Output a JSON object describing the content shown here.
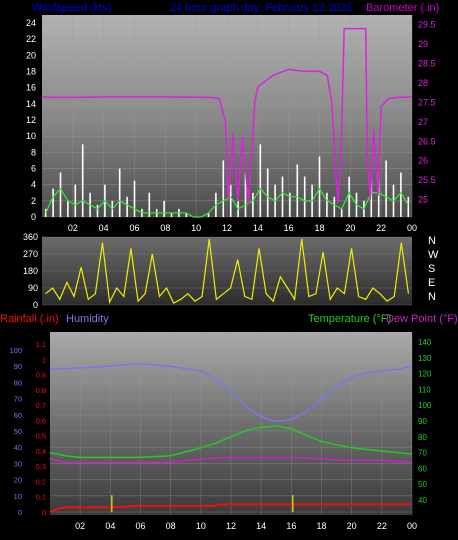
{
  "header": {
    "left": "Windspeed (kts)",
    "center": "24 hour graph day:  February 12 2025",
    "right": "Barometer (.in)"
  },
  "colors": {
    "wind_speed": "#ffffff",
    "wind_gust": "#e8e8e8",
    "wind_avg": "#33ee33",
    "barometer": "#dd22dd",
    "direction": "#eeee00",
    "rainfall": "#ee1111",
    "humidity": "#7777ee",
    "temperature": "#22cc22",
    "dewpoint": "#cc22cc",
    "label_left": "#0000dd",
    "label_right": "#cc00cc"
  },
  "chart_data": [
    {
      "name": "wind-barometer",
      "type": "line",
      "xticks": [
        "02",
        "04",
        "06",
        "08",
        "10",
        "12",
        "14",
        "16",
        "18",
        "20",
        "22",
        "00"
      ],
      "left_axis": {
        "label": "Windspeed (kts)",
        "ticks": [
          0,
          2,
          4,
          6,
          8,
          10,
          12,
          14,
          16,
          18,
          20,
          22,
          24
        ],
        "ylim": [
          0,
          25
        ]
      },
      "right_axis": {
        "label": "Barometer (.in)",
        "ticks": [
          "25",
          "25.5",
          "26",
          "26.5",
          "27",
          "27.5",
          "28",
          "28.5",
          "29",
          "29.5"
        ],
        "ylim": [
          24.55,
          29.75
        ]
      },
      "wind_speed": [
        1.0,
        3.5,
        5.5,
        2.0,
        4.0,
        9.0,
        3.0,
        1.5,
        4.0,
        2.0,
        6.0,
        2.5,
        4.5,
        1.0,
        3.0,
        1.0,
        2.0,
        0.5,
        1.0,
        0.5,
        0.0,
        0.0,
        0.5,
        3.0,
        7.0,
        4.0,
        2.0,
        5.5,
        3.0,
        9.0,
        6.0,
        4.0,
        5.0,
        3.0,
        6.5,
        5.0,
        4.0,
        7.5,
        3.0,
        2.5,
        1.0,
        5.0,
        3.0,
        2.0,
        4.5,
        5.5,
        7.0,
        4.0,
        5.5,
        2.5
      ],
      "wind_avg": [
        0.5,
        2.5,
        3.5,
        2.0,
        1.5,
        2.0,
        1.5,
        1.0,
        2.0,
        1.0,
        2.0,
        1.5,
        1.0,
        0.5,
        0.5,
        0.5,
        0.5,
        0.5,
        0.5,
        0.5,
        0.0,
        0.0,
        0.5,
        1.5,
        2.0,
        2.5,
        1.0,
        1.5,
        2.0,
        3.5,
        2.5,
        2.0,
        3.0,
        2.5,
        2.5,
        2.0,
        2.0,
        3.5,
        2.0,
        1.5,
        1.0,
        3.0,
        1.5,
        1.0,
        3.0,
        3.0,
        2.5,
        2.0,
        3.0,
        1.5
      ],
      "barometer": [
        [
          0.0,
          27.65
        ],
        [
          0.5,
          27.63
        ],
        [
          2.0,
          27.63
        ],
        [
          4.0,
          27.64
        ],
        [
          8.0,
          27.64
        ],
        [
          11.0,
          27.63
        ],
        [
          11.5,
          27.6
        ],
        [
          11.9,
          27.0
        ],
        [
          12.1,
          25.0
        ],
        [
          12.4,
          26.7
        ],
        [
          12.7,
          24.95
        ],
        [
          13.0,
          26.6
        ],
        [
          13.4,
          24.9
        ],
        [
          13.8,
          27.5
        ],
        [
          14.0,
          27.9
        ],
        [
          15.0,
          28.2
        ],
        [
          16.0,
          28.35
        ],
        [
          17.0,
          28.3
        ],
        [
          18.0,
          28.3
        ],
        [
          18.5,
          28.2
        ],
        [
          18.8,
          27.5
        ],
        [
          19.0,
          26.0
        ],
        [
          19.2,
          24.9
        ],
        [
          19.4,
          26.2
        ],
        [
          19.6,
          29.4
        ],
        [
          21.0,
          29.4
        ],
        [
          21.1,
          26.0
        ],
        [
          21.3,
          25.0
        ],
        [
          21.5,
          26.8
        ],
        [
          21.8,
          25.1
        ],
        [
          22.0,
          27.4
        ],
        [
          22.5,
          27.6
        ],
        [
          23.0,
          27.63
        ],
        [
          24.0,
          27.64
        ]
      ]
    },
    {
      "name": "wind-direction",
      "type": "scatter",
      "ylabels": [
        "360",
        "270",
        "180",
        "90",
        "0"
      ],
      "ylim": [
        0,
        360
      ],
      "compass": [
        "N",
        "W",
        "S",
        "E",
        "N"
      ],
      "values": [
        60,
        90,
        30,
        120,
        45,
        200,
        30,
        60,
        330,
        15,
        90,
        45,
        300,
        20,
        60,
        270,
        45,
        90,
        10,
        30,
        60,
        20,
        45,
        350,
        30,
        60,
        90,
        240,
        45,
        30,
        300,
        60,
        20,
        150,
        90,
        30,
        350,
        45,
        60,
        280,
        30,
        90,
        60,
        300,
        45,
        30,
        90,
        60,
        20,
        45,
        330,
        60
      ]
    },
    {
      "name": "rain-humidity-temperature",
      "type": "line",
      "xticks": [
        "02",
        "04",
        "06",
        "08",
        "10",
        "12",
        "14",
        "16",
        "18",
        "20",
        "22",
        "00"
      ],
      "labels": {
        "rainfall": "Rainfall (.in)",
        "humidity": "Humidity",
        "temperature": "Temperature (°F)",
        "dewpoint": "Dew Point (°F)"
      },
      "humidity_ticks": [
        "100",
        "90",
        "80",
        "70",
        "60",
        "50",
        "40",
        "30",
        "20",
        "10",
        "0"
      ],
      "rain_ticks": [
        "1.1",
        "1",
        "0.9",
        "0.8",
        "0.7",
        "0.6",
        "0.5",
        "0.4",
        "0.3",
        "0.2",
        "0.1",
        "0"
      ],
      "temp_ticks": [
        "140",
        "130",
        "120",
        "110",
        "100",
        "90",
        "80",
        "70",
        "60",
        "50",
        "40"
      ],
      "humidity": [
        [
          0,
          88
        ],
        [
          2,
          89
        ],
        [
          4,
          90
        ],
        [
          5,
          91
        ],
        [
          6,
          91.5
        ],
        [
          8,
          90
        ],
        [
          10,
          87
        ],
        [
          11,
          82
        ],
        [
          12,
          74
        ],
        [
          13,
          65
        ],
        [
          14,
          59
        ],
        [
          14.5,
          57
        ],
        [
          15,
          56
        ],
        [
          16,
          57
        ],
        [
          17,
          62
        ],
        [
          18,
          70
        ],
        [
          19,
          78
        ],
        [
          20,
          83
        ],
        [
          21,
          86
        ],
        [
          22,
          87
        ],
        [
          23,
          88
        ],
        [
          24,
          90
        ]
      ],
      "temperature": [
        [
          0,
          70
        ],
        [
          1,
          68
        ],
        [
          2,
          67
        ],
        [
          4,
          67
        ],
        [
          6,
          67
        ],
        [
          8,
          68
        ],
        [
          10,
          73
        ],
        [
          11,
          76
        ],
        [
          12,
          80
        ],
        [
          13,
          84
        ],
        [
          14,
          86
        ],
        [
          15,
          87
        ],
        [
          16,
          85
        ],
        [
          17,
          81
        ],
        [
          18,
          77
        ],
        [
          19,
          75
        ],
        [
          20,
          73
        ],
        [
          22,
          71
        ],
        [
          23,
          70
        ],
        [
          24,
          69
        ]
      ],
      "dewpoint": [
        [
          0,
          66
        ],
        [
          1,
          64
        ],
        [
          2,
          64
        ],
        [
          4,
          64
        ],
        [
          6,
          64
        ],
        [
          8,
          64
        ],
        [
          10,
          66
        ],
        [
          12,
          67
        ],
        [
          14,
          67
        ],
        [
          16,
          67
        ],
        [
          18,
          66
        ],
        [
          20,
          65
        ],
        [
          22,
          65
        ],
        [
          24,
          64
        ]
      ],
      "rainfall": [
        [
          0,
          0
        ],
        [
          0.5,
          0.02
        ],
        [
          1,
          0.03
        ],
        [
          2,
          0.03
        ],
        [
          4,
          0.03
        ],
        [
          6,
          0.04
        ],
        [
          8,
          0.04
        ],
        [
          10,
          0.04
        ],
        [
          11,
          0.04
        ],
        [
          11.2,
          0.05
        ],
        [
          14,
          0.05
        ],
        [
          18,
          0.05
        ],
        [
          24,
          0.05
        ]
      ],
      "rain_rate": [
        [
          4.1,
          0.11
        ],
        [
          16.1,
          0.11
        ]
      ]
    }
  ]
}
